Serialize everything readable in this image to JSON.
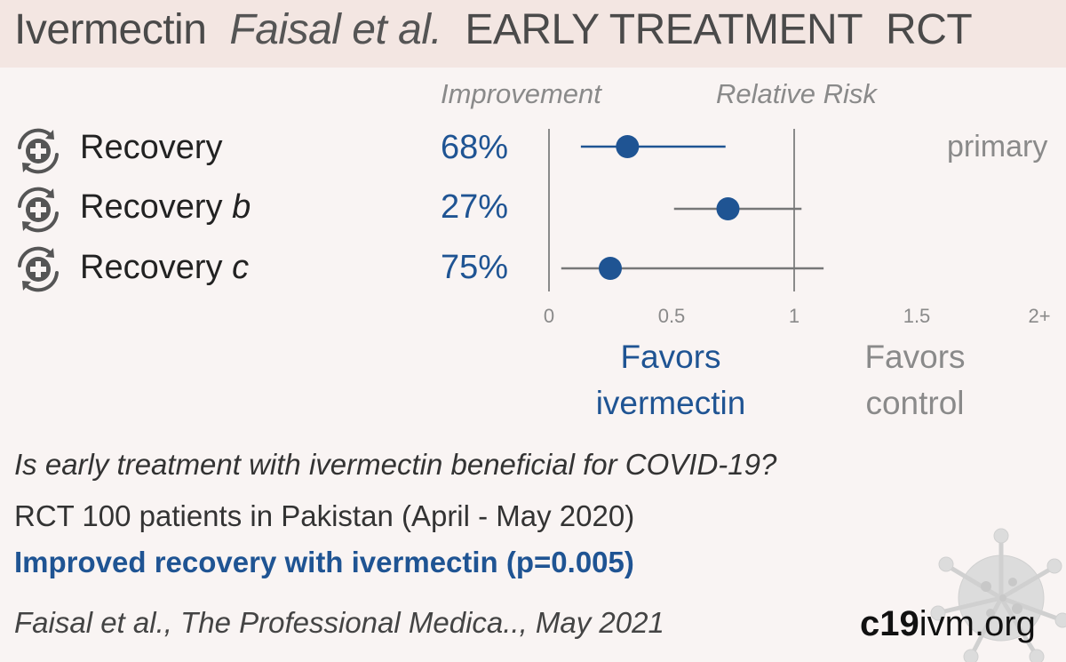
{
  "header": {
    "drug": "Ivermectin",
    "authors": "Faisal et al.",
    "stage": "EARLY TREATMENT",
    "design": "RCT"
  },
  "columns": {
    "improvement": "Improvement",
    "relative_risk": "Relative Risk"
  },
  "rows": [
    {
      "label": "Recovery",
      "suffix": "",
      "improvement": "68%",
      "icon": "recovery-icon"
    },
    {
      "label": "Recovery ",
      "suffix": "b",
      "improvement": "27%",
      "icon": "recovery-icon"
    },
    {
      "label": "Recovery ",
      "suffix": "c",
      "improvement": "75%",
      "icon": "recovery-icon"
    }
  ],
  "primary_label": "primary",
  "favors": {
    "ivermectin": [
      "Favors",
      "ivermectin"
    ],
    "control": [
      "Favors",
      "control"
    ]
  },
  "summary": {
    "question": "Is early treatment with ivermectin beneficial for COVID-19?",
    "design": "RCT 100 patients in Pakistan (April - May 2020)",
    "conclusion": "Improved recovery with ivermectin (p=0.005)",
    "citation": "Faisal et al., The Professional Medica.., May 2021"
  },
  "site": {
    "bold": "c19",
    "rest": "ivm.org"
  },
  "colors": {
    "accent": "#1f5493",
    "muted": "#8a8a8a",
    "header_bg": "#f3e6e2",
    "background": "#f9f4f3"
  },
  "chart_data": {
    "type": "scatter",
    "subtype": "forest-plot",
    "categories": [
      "Recovery",
      "Recovery b",
      "Recovery c"
    ],
    "x_ticks": [
      "0",
      "0.5",
      "1",
      "1.5",
      "2+"
    ],
    "xlim": [
      0,
      2
    ],
    "reference_line": 1,
    "series": [
      {
        "values": [
          {
            "estimate": 0.32,
            "lower": 0.13,
            "upper": 0.72,
            "primary": true
          },
          {
            "estimate": 0.73,
            "lower": 0.51,
            "upper": 1.03,
            "primary": false
          },
          {
            "estimate": 0.25,
            "lower": 0.05,
            "upper": 1.12,
            "primary": false
          }
        ]
      }
    ]
  }
}
